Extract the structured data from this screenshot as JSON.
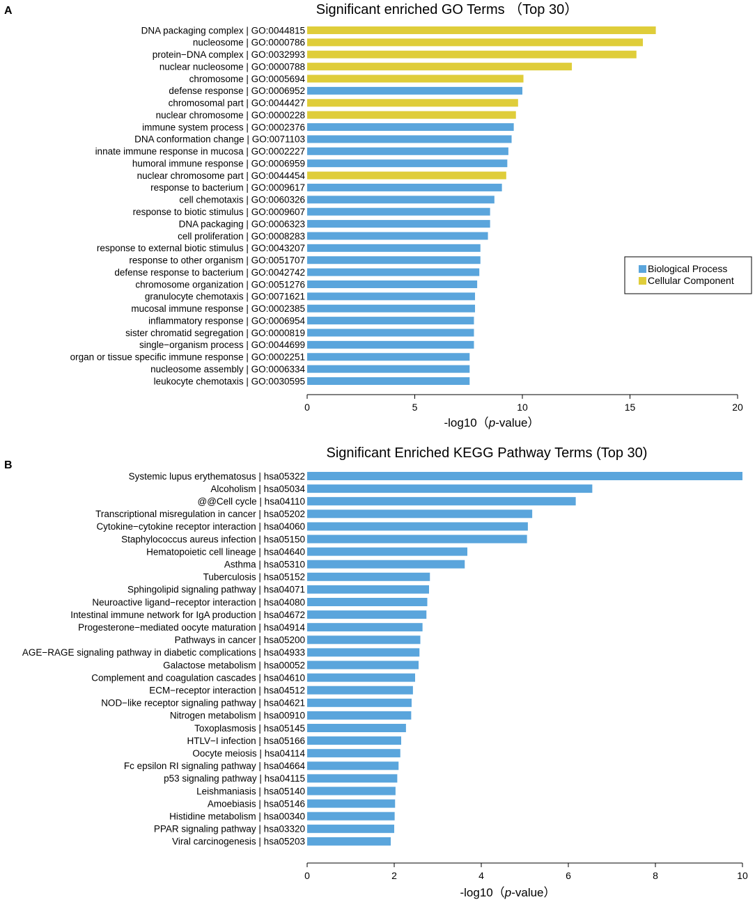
{
  "panels": {
    "a_letter": "A",
    "b_letter": "B"
  },
  "colors": {
    "biological_process": "#5aa5dc",
    "cellular_component": "#dfcd3a",
    "kegg": "#5aa5dc"
  },
  "chart_data": [
    {
      "type": "bar",
      "orientation": "horizontal",
      "title": "Significant enriched GO Terms （Top 30）",
      "xlabel_prefix": "-log10（",
      "xlabel_italic": "p",
      "xlabel_suffix": "-value）",
      "xlim": [
        0,
        20
      ],
      "xticks": [
        0,
        5,
        10,
        15,
        20
      ],
      "legend": {
        "placement": "right",
        "entries": [
          {
            "name": "Biological Process",
            "color": "#5aa5dc"
          },
          {
            "name": "Cellular Component",
            "color": "#dfcd3a"
          }
        ]
      },
      "categories": [
        "DNA packaging complex | GO:0044815",
        "nucleosome | GO:0000786",
        "protein−DNA complex | GO:0032993",
        "nuclear nucleosome | GO:0000788",
        "chromosome | GO:0005694",
        "defense response | GO:0006952",
        "chromosomal part | GO:0044427",
        "nuclear chromosome | GO:0000228",
        "immune system process | GO:0002376",
        "DNA conformation change | GO:0071103",
        "innate immune response in mucosa | GO:0002227",
        "humoral immune response | GO:0006959",
        "nuclear chromosome part | GO:0044454",
        "response to bacterium | GO:0009617",
        "cell chemotaxis | GO:0060326",
        "response to biotic stimulus | GO:0009607",
        "DNA packaging | GO:0006323",
        "cell proliferation | GO:0008283",
        "response to external biotic stimulus | GO:0043207",
        "response to other organism | GO:0051707",
        "defense response to bacterium | GO:0042742",
        "chromosome organization | GO:0051276",
        "granulocyte chemotaxis | GO:0071621",
        "mucosal immune response | GO:0002385",
        "inflammatory response | GO:0006954",
        "sister chromatid segregation | GO:0000819",
        "single−organism process | GO:0044699",
        "organ or tissue specific immune response | GO:0002251",
        "nucleosome assembly | GO:0006334",
        "leukocyte chemotaxis | GO:0030595"
      ],
      "values": [
        16.2,
        15.6,
        15.3,
        12.3,
        10.05,
        10.0,
        9.8,
        9.7,
        9.6,
        9.5,
        9.35,
        9.3,
        9.25,
        9.05,
        8.7,
        8.5,
        8.5,
        8.4,
        8.05,
        8.05,
        8.0,
        7.9,
        7.8,
        7.8,
        7.75,
        7.75,
        7.75,
        7.55,
        7.55,
        7.55
      ],
      "groups": [
        "Cellular Component",
        "Cellular Component",
        "Cellular Component",
        "Cellular Component",
        "Cellular Component",
        "Biological Process",
        "Cellular Component",
        "Cellular Component",
        "Biological Process",
        "Biological Process",
        "Biological Process",
        "Biological Process",
        "Cellular Component",
        "Biological Process",
        "Biological Process",
        "Biological Process",
        "Biological Process",
        "Biological Process",
        "Biological Process",
        "Biological Process",
        "Biological Process",
        "Biological Process",
        "Biological Process",
        "Biological Process",
        "Biological Process",
        "Biological Process",
        "Biological Process",
        "Biological Process",
        "Biological Process",
        "Biological Process"
      ]
    },
    {
      "type": "bar",
      "orientation": "horizontal",
      "title": "Significant Enriched KEGG Pathway Terms (Top 30)",
      "xlabel_prefix": "-log10（",
      "xlabel_italic": "p",
      "xlabel_suffix": "-value）",
      "xlim": [
        0,
        10
      ],
      "xticks": [
        0,
        2,
        4,
        6,
        8,
        10
      ],
      "categories": [
        "Systemic lupus erythematosus | hsa05322",
        "Alcoholism | hsa05034",
        "@@Cell cycle | hsa04110",
        "Transcriptional misregulation in cancer | hsa05202",
        "Cytokine−cytokine receptor interaction | hsa04060",
        "Staphylococcus aureus infection | hsa05150",
        "Hematopoietic cell lineage | hsa04640",
        "Asthma | hsa05310",
        "Tuberculosis | hsa05152",
        "Sphingolipid signaling pathway | hsa04071",
        "Neuroactive ligand−receptor interaction | hsa04080",
        "Intestinal immune network for IgA production | hsa04672",
        "Progesterone−mediated oocyte maturation | hsa04914",
        "Pathways in cancer | hsa05200",
        "AGE−RAGE signaling pathway in diabetic complications | hsa04933",
        "Galactose metabolism | hsa00052",
        "Complement and coagulation cascades | hsa04610",
        "ECM−receptor interaction | hsa04512",
        "NOD−like receptor signaling pathway | hsa04621",
        "Nitrogen metabolism | hsa00910",
        "Toxoplasmosis | hsa05145",
        "HTLV−I infection | hsa05166",
        "Oocyte meiosis | hsa04114",
        "Fc epsilon RI signaling pathway | hsa04664",
        "p53 signaling pathway | hsa04115",
        "Leishmaniasis | hsa05140",
        "Amoebiasis | hsa05146",
        "Histidine metabolism | hsa00340",
        "PPAR signaling pathway | hsa03320",
        "Viral carcinogenesis | hsa05203"
      ],
      "values": [
        10.0,
        6.55,
        6.17,
        5.17,
        5.07,
        5.05,
        3.68,
        3.62,
        2.82,
        2.8,
        2.76,
        2.74,
        2.65,
        2.6,
        2.58,
        2.56,
        2.48,
        2.43,
        2.4,
        2.39,
        2.27,
        2.16,
        2.14,
        2.1,
        2.07,
        2.03,
        2.02,
        2.01,
        2.0,
        1.92
      ]
    }
  ]
}
